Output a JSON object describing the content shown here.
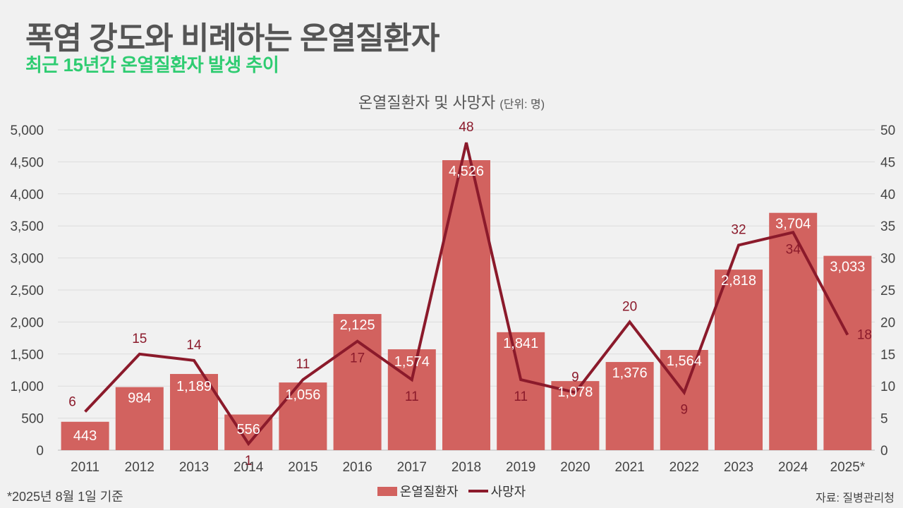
{
  "header": {
    "title": "폭염 강도와 비례하는 온열질환자",
    "subtitle": "최근 15년간 온열질환자 발생 추이"
  },
  "chart_title": {
    "main": "온열질환자 및 사망자",
    "unit": "(단위: 명)"
  },
  "colors": {
    "bar": "#d2625f",
    "line": "#8b1a2b",
    "subtitle": "#2ecc71"
  },
  "chart_data": {
    "type": "bar",
    "title": "온열질환자 및 사망자 (단위: 명)",
    "categories": [
      "2011",
      "2012",
      "2013",
      "2014",
      "2015",
      "2016",
      "2017",
      "2018",
      "2019",
      "2020",
      "2021",
      "2022",
      "2023",
      "2024",
      "2025*"
    ],
    "series": [
      {
        "name": "온열질환자",
        "type": "bar",
        "axis": "left",
        "values": [
          443,
          984,
          1189,
          556,
          1056,
          2125,
          1574,
          4526,
          1841,
          1078,
          1376,
          1564,
          2818,
          3704,
          3033
        ],
        "labels": [
          "443",
          "984",
          "1,189",
          "556",
          "1,056",
          "2,125",
          "1,574",
          "4,526",
          "1,841",
          "1,078",
          "1,376",
          "1,564",
          "2,818",
          "3,704",
          "3,033"
        ]
      },
      {
        "name": "사망자",
        "type": "line",
        "axis": "right",
        "values": [
          6,
          15,
          14,
          1,
          11,
          17,
          11,
          48,
          11,
          9,
          20,
          9,
          32,
          34,
          18
        ],
        "labels": [
          "6",
          "15",
          "14",
          "1",
          "11",
          "17",
          "11",
          "48",
          "11",
          "9",
          "20",
          "9",
          "32",
          "34",
          "18"
        ]
      }
    ],
    "y_left": {
      "lim": [
        0,
        5000
      ],
      "ticks": [
        0,
        500,
        1000,
        1500,
        2000,
        2500,
        3000,
        3500,
        4000,
        4500,
        5000
      ],
      "tick_labels": [
        "0",
        "500",
        "1,000",
        "1,500",
        "2,000",
        "2,500",
        "3,000",
        "3,500",
        "4,000",
        "4,500",
        "5,000"
      ]
    },
    "y_right": {
      "lim": [
        0,
        50
      ],
      "ticks": [
        0,
        5,
        10,
        15,
        20,
        25,
        30,
        35,
        40,
        45,
        50
      ],
      "tick_labels": [
        "0",
        "5",
        "10",
        "15",
        "20",
        "25",
        "30",
        "35",
        "40",
        "45",
        "50"
      ]
    },
    "grid": true,
    "legend": "bottom-center"
  },
  "legend": {
    "bar_label": "온열질환자",
    "line_label": "사망자"
  },
  "footer": {
    "note": "*2025년 8월 1일 기준",
    "source": "자료: 질병관리청"
  }
}
